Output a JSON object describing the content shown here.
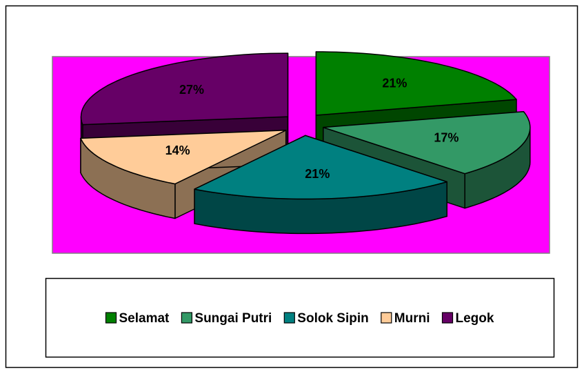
{
  "chart_data": {
    "type": "pie",
    "categories": [
      "Selamat",
      "Sungai Putri",
      "Solok Sipin",
      "Murni",
      "Legok"
    ],
    "values": [
      21,
      17,
      21,
      14,
      27
    ],
    "value_labels": [
      "21%",
      "17%",
      "21%",
      "14%",
      "27%"
    ],
    "colors": [
      "#008000",
      "#339966",
      "#008080",
      "#ffcc99",
      "#660066"
    ],
    "legend": "bottom"
  }
}
